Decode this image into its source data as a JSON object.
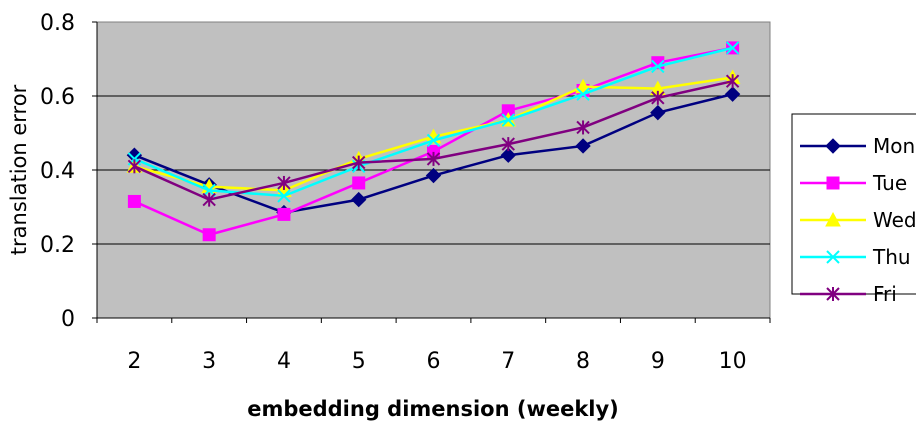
{
  "chart_data": {
    "type": "line",
    "title": "",
    "xlabel": "embedding dimension (weekly)",
    "ylabel": "translation error",
    "x": [
      2,
      3,
      4,
      5,
      6,
      7,
      8,
      9,
      10
    ],
    "x_tick_labels": [
      "2",
      "3",
      "4",
      "5",
      "6",
      "7",
      "8",
      "9",
      "10"
    ],
    "ylim": [
      0,
      0.8
    ],
    "y_ticks": [
      0,
      0.2,
      0.4,
      0.6,
      0.8
    ],
    "y_tick_labels": [
      "0",
      "0.2",
      "0.4",
      "0.6",
      "0.8"
    ],
    "grid": "horizontal",
    "plot_background": "#c0c0c0",
    "legend_position": "right",
    "series": [
      {
        "name": "Mon",
        "color": "#000080",
        "marker": "diamond",
        "values": [
          0.44,
          0.36,
          0.285,
          0.32,
          0.385,
          0.44,
          0.465,
          0.555,
          0.605
        ]
      },
      {
        "name": "Tue",
        "color": "#ff00ff",
        "marker": "square",
        "values": [
          0.315,
          0.225,
          0.28,
          0.365,
          0.45,
          0.56,
          0.615,
          0.69,
          0.73
        ]
      },
      {
        "name": "Wed",
        "color": "#ffff00",
        "marker": "triangle",
        "values": [
          0.41,
          0.355,
          0.345,
          0.43,
          0.49,
          0.535,
          0.625,
          0.62,
          0.65
        ]
      },
      {
        "name": "Thu",
        "color": "#00ffff",
        "marker": "x",
        "values": [
          0.43,
          0.345,
          0.33,
          0.41,
          0.48,
          0.535,
          0.605,
          0.68,
          0.73
        ]
      },
      {
        "name": "Fri",
        "color": "#800080",
        "marker": "asterisk",
        "values": [
          0.41,
          0.32,
          0.365,
          0.42,
          0.43,
          0.47,
          0.515,
          0.595,
          0.64
        ]
      }
    ]
  }
}
